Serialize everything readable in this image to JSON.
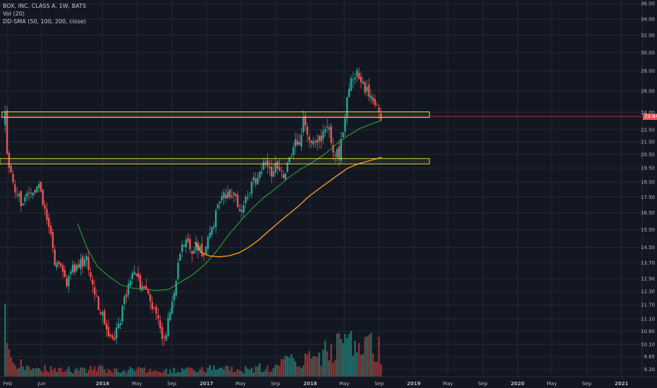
{
  "legend": {
    "symbol": "BOX, INC. CLASS A, 1W, BATS",
    "volume": "Vol (20)",
    "indicator": "DD-SMA (50, 100, 200, close)"
  },
  "colors": {
    "background": "#131722",
    "grid": "#242833",
    "axis_text": "#b2b5be",
    "candle_up": "#26a69a",
    "candle_down": "#ef5350",
    "vol_up": "#1f6f68",
    "vol_down": "#8b3434",
    "sma_50": "#2eae36",
    "sma_100": "#f29b1d",
    "zone_outline": "#e6e63a",
    "last_price_line": "#ef5350"
  },
  "chart_data": {
    "type": "candlestick",
    "title": "BOX, INC. CLASS A, 1W, BATS",
    "x_tick_labels": [
      "Feb",
      "Jun",
      "2016",
      "May",
      "Sep",
      "2017",
      "May",
      "Sep",
      "2018",
      "May",
      "Sep",
      "2019",
      "May",
      "Sep",
      "2020",
      "May",
      "Sep",
      "2021"
    ],
    "y_tick_labels": [
      "9.20",
      "9.65",
      "10.10",
      "10.60",
      "11.10",
      "11.70",
      "12.30",
      "12.90",
      "13.70",
      "14.50",
      "15.50",
      "16.50",
      "17.50",
      "18.50",
      "19.50",
      "20.50",
      "21.50",
      "22.50",
      "24.00",
      "26.00",
      "28.00",
      "30.00",
      "32.00",
      "34.00",
      "36.00"
    ],
    "y_scale": "log",
    "ylim": [
      8.95,
      36.5
    ],
    "x_range": [
      "2015-01-05",
      "2021-03-15"
    ],
    "last_price": "23.64",
    "grid": true,
    "price_path": [
      [
        "2015-01-23",
        23.6
      ],
      [
        "2015-02-01",
        19.6
      ],
      [
        "2015-02-15",
        18.6
      ],
      [
        "2015-03-01",
        17.5
      ],
      [
        "2015-04-01",
        17.2
      ],
      [
        "2015-05-01",
        17.8
      ],
      [
        "2015-05-20",
        18.3
      ],
      [
        "2015-06-10",
        16.6
      ],
      [
        "2015-07-01",
        15.2
      ],
      [
        "2015-07-20",
        13.6
      ],
      [
        "2015-08-10",
        13.2
      ],
      [
        "2015-08-31",
        12.7
      ],
      [
        "2015-09-21",
        13.4
      ],
      [
        "2015-10-12",
        13.6
      ],
      [
        "2015-11-02",
        14.0
      ],
      [
        "2015-11-23",
        13.0
      ],
      [
        "2015-12-14",
        11.6
      ],
      [
        "2016-01-04",
        11.3
      ],
      [
        "2016-01-25",
        10.4
      ],
      [
        "2016-02-15",
        10.5
      ],
      [
        "2016-03-07",
        11.3
      ],
      [
        "2016-03-28",
        12.3
      ],
      [
        "2016-04-18",
        13.0
      ],
      [
        "2016-05-09",
        12.6
      ],
      [
        "2016-05-30",
        12.4
      ],
      [
        "2016-06-20",
        11.6
      ],
      [
        "2016-07-11",
        11.2
      ],
      [
        "2016-08-01",
        10.3
      ],
      [
        "2016-08-22",
        11.1
      ],
      [
        "2016-09-12",
        12.6
      ],
      [
        "2016-10-03",
        14.2
      ],
      [
        "2016-10-24",
        15.2
      ],
      [
        "2016-11-14",
        14.3
      ],
      [
        "2016-12-05",
        14.6
      ],
      [
        "2016-12-26",
        13.9
      ],
      [
        "2017-01-16",
        15.6
      ],
      [
        "2017-02-06",
        16.5
      ],
      [
        "2017-02-27",
        17.4
      ],
      [
        "2017-03-20",
        17.9
      ],
      [
        "2017-04-10",
        17.3
      ],
      [
        "2017-05-01",
        16.7
      ],
      [
        "2017-05-22",
        17.6
      ],
      [
        "2017-06-12",
        18.3
      ],
      [
        "2017-07-03",
        19.2
      ],
      [
        "2017-07-24",
        19.7
      ],
      [
        "2017-08-14",
        19.2
      ],
      [
        "2017-09-04",
        19.5
      ],
      [
        "2017-09-25",
        19.1
      ],
      [
        "2017-10-16",
        19.7
      ],
      [
        "2017-11-06",
        21.2
      ],
      [
        "2017-11-27",
        21.8
      ],
      [
        "2017-12-11",
        23.4
      ],
      [
        "2018-01-01",
        21.5
      ],
      [
        "2018-01-22",
        21.2
      ],
      [
        "2018-02-12",
        22.1
      ],
      [
        "2018-03-05",
        22.7
      ],
      [
        "2018-03-26",
        20.7
      ],
      [
        "2018-04-16",
        20.6
      ],
      [
        "2018-05-07",
        24.3
      ],
      [
        "2018-05-28",
        27.2
      ],
      [
        "2018-06-18",
        27.5
      ],
      [
        "2018-07-09",
        26.6
      ],
      [
        "2018-07-30",
        26.0
      ],
      [
        "2018-08-20",
        25.0
      ],
      [
        "2018-09-03",
        24.3
      ],
      [
        "2018-09-10",
        23.64
      ]
    ],
    "volume_path": [
      [
        "2015-01-23",
        1.0
      ],
      [
        "2015-02-01",
        0.35
      ],
      [
        "2015-03-01",
        0.22
      ],
      [
        "2015-06-01",
        0.15
      ],
      [
        "2015-09-01",
        0.12
      ],
      [
        "2016-01-01",
        0.14
      ],
      [
        "2016-05-01",
        0.12
      ],
      [
        "2016-09-01",
        0.1
      ],
      [
        "2017-01-01",
        0.14
      ],
      [
        "2017-05-01",
        0.12
      ],
      [
        "2017-09-01",
        0.2
      ],
      [
        "2017-11-01",
        0.36
      ],
      [
        "2018-01-01",
        0.3
      ],
      [
        "2018-03-01",
        0.45
      ],
      [
        "2018-05-01",
        0.75
      ],
      [
        "2018-07-01",
        0.55
      ],
      [
        "2018-09-10",
        0.5
      ]
    ],
    "series": [
      {
        "type": "line",
        "points": [
          [
            "2015-10-05",
            15.85
          ],
          [
            "2015-11-09",
            14.4
          ],
          [
            "2015-12-14",
            13.5
          ],
          [
            "2016-01-25",
            13.0
          ],
          [
            "2016-03-07",
            12.6
          ],
          [
            "2016-04-18",
            12.45
          ],
          [
            "2016-05-30",
            12.4
          ],
          [
            "2016-07-11",
            12.35
          ],
          [
            "2016-08-22",
            12.4
          ],
          [
            "2016-10-03",
            12.75
          ],
          [
            "2016-11-14",
            13.1
          ],
          [
            "2016-12-26",
            13.6
          ],
          [
            "2017-02-06",
            14.3
          ],
          [
            "2017-03-20",
            15.2
          ],
          [
            "2017-05-01",
            16.0
          ],
          [
            "2017-06-12",
            16.8
          ],
          [
            "2017-07-24",
            17.5
          ],
          [
            "2017-09-04",
            18.1
          ],
          [
            "2017-10-16",
            18.8
          ],
          [
            "2017-11-27",
            19.4
          ],
          [
            "2018-01-08",
            19.9
          ],
          [
            "2018-02-19",
            20.5
          ],
          [
            "2018-04-02",
            21.3
          ],
          [
            "2018-05-14",
            22.0
          ],
          [
            "2018-06-25",
            22.6
          ],
          [
            "2018-08-06",
            23.0
          ],
          [
            "2018-09-10",
            23.3
          ]
        ]
      },
      {
        "type": "line",
        "points": [
          [
            "2016-11-21",
            14.8
          ],
          [
            "2016-12-12",
            14.25
          ],
          [
            "2017-01-09",
            14.05
          ],
          [
            "2017-02-13",
            14.0
          ],
          [
            "2017-03-20",
            14.05
          ],
          [
            "2017-04-24",
            14.2
          ],
          [
            "2017-05-29",
            14.5
          ],
          [
            "2017-07-03",
            14.9
          ],
          [
            "2017-08-07",
            15.4
          ],
          [
            "2017-09-11",
            15.9
          ],
          [
            "2017-10-16",
            16.4
          ],
          [
            "2017-11-20",
            16.9
          ],
          [
            "2017-12-25",
            17.5
          ],
          [
            "2018-01-29",
            18.0
          ],
          [
            "2018-03-05",
            18.5
          ],
          [
            "2018-04-09",
            19.0
          ],
          [
            "2018-05-14",
            19.5
          ],
          [
            "2018-06-18",
            19.8
          ],
          [
            "2018-07-23",
            20.0
          ],
          [
            "2018-09-10",
            20.3
          ]
        ]
      }
    ],
    "horizontal_zones": [
      {
        "start": "2015-01-12",
        "end": "2019-02-25",
        "top": 24.05,
        "bottom": 23.55
      },
      {
        "start": "2015-01-05",
        "end": "2019-02-25",
        "top": 20.2,
        "bottom": 19.8
      }
    ]
  }
}
